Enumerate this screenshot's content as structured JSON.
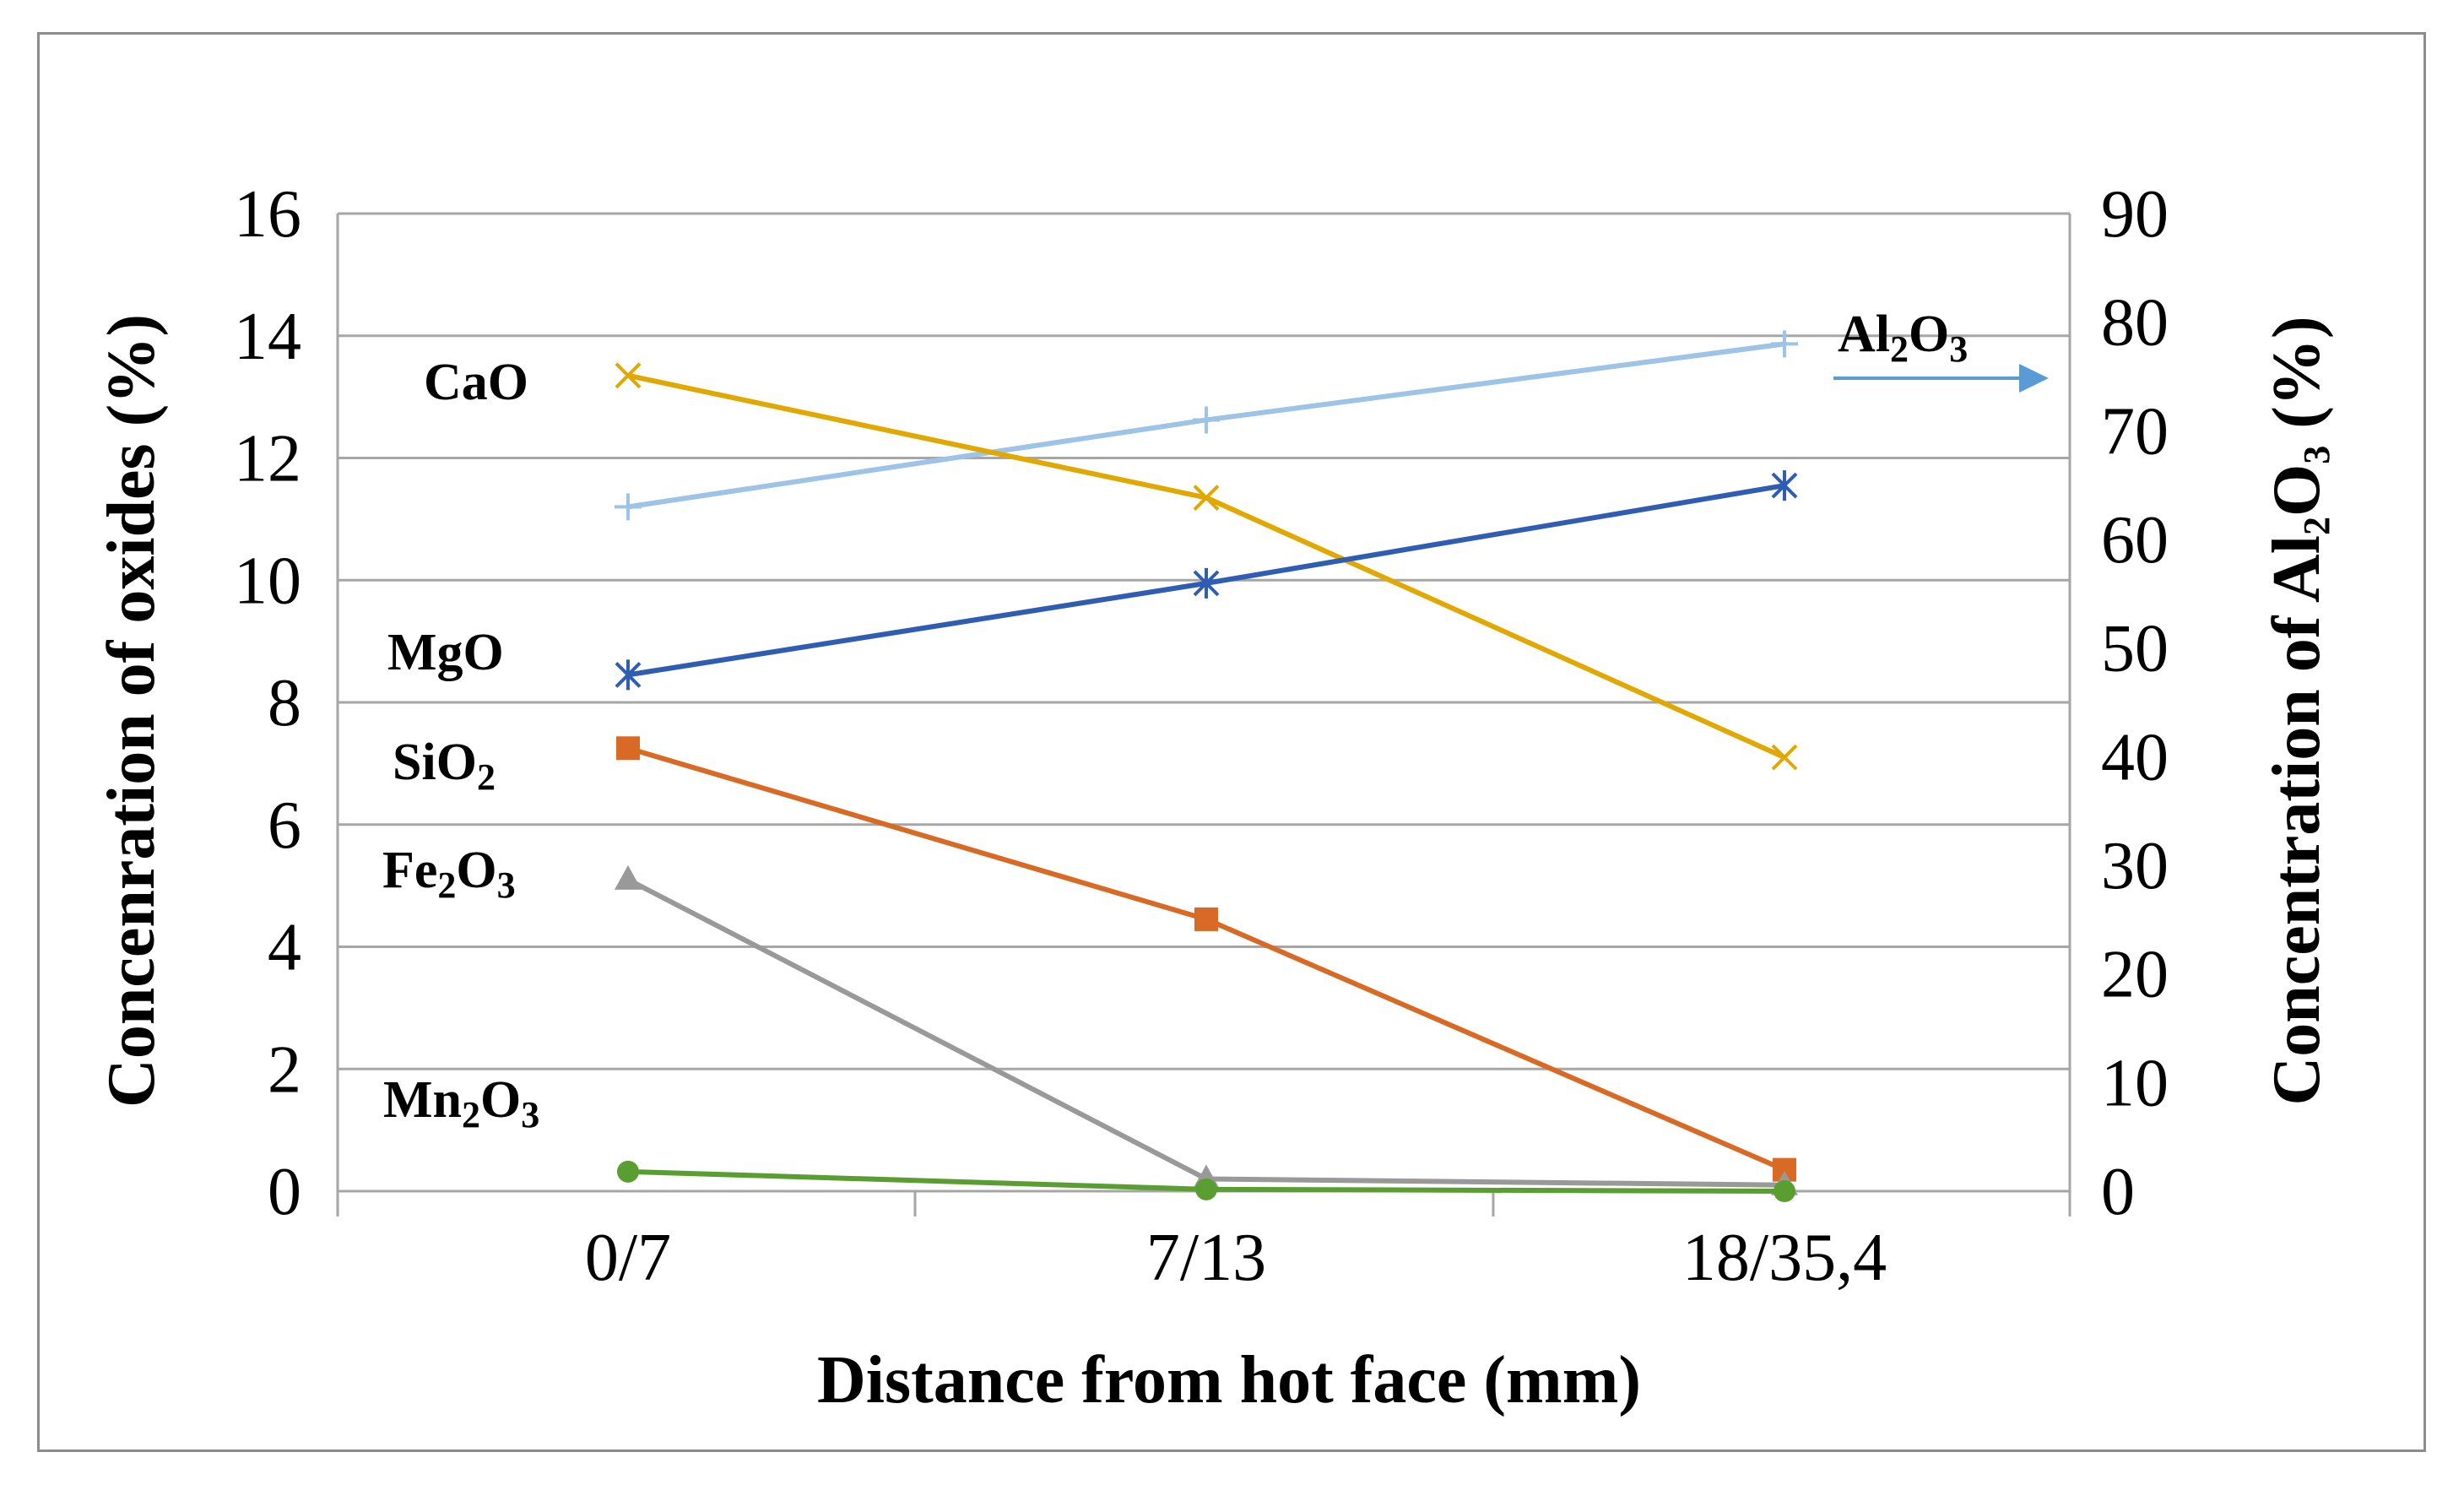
{
  "chart_data": {
    "type": "line",
    "categories": [
      "0/7",
      "7/13",
      "18/35,4"
    ],
    "xlabel": "Distance from hot face (mm)",
    "ylabel": {
      "segments": [
        {
          "text": "Concenration of oxides (%)"
        }
      ]
    },
    "y2label": {
      "segments": [
        {
          "text": "Concentration of  Al"
        },
        {
          "text": "2",
          "sub": true
        },
        {
          "text": "O"
        },
        {
          "text": "3",
          "sub": true
        },
        {
          "text": " (%)"
        }
      ]
    },
    "ylim": [
      0,
      16
    ],
    "yticks": [
      0,
      2,
      4,
      6,
      8,
      10,
      12,
      14,
      16
    ],
    "y2lim": [
      0,
      90
    ],
    "y2ticks": [
      0,
      10,
      20,
      30,
      40,
      50,
      60,
      70,
      80,
      90
    ],
    "grid": true,
    "series": [
      {
        "name": "Al2O3",
        "label_segments": [
          {
            "text": "Al"
          },
          {
            "text": "2",
            "sub": true
          },
          {
            "text": "O"
          },
          {
            "text": "3",
            "sub": true
          }
        ],
        "axis": "right",
        "values": [
          63,
          71,
          78
        ],
        "color": "#9DC3E6",
        "marker": "plus",
        "label_arrow": true
      },
      {
        "name": "CaO",
        "label_segments": [
          {
            "text": "CaO"
          }
        ],
        "axis": "left",
        "values": [
          13.35,
          11.35,
          7.1
        ],
        "color": "#E0A800",
        "marker": "x"
      },
      {
        "name": "MgO",
        "label_segments": [
          {
            "text": "MgO"
          }
        ],
        "axis": "left",
        "values": [
          8.45,
          9.95,
          11.55
        ],
        "color": "#2F5DB3",
        "marker": "star"
      },
      {
        "name": "SiO2",
        "label_segments": [
          {
            "text": "SiO"
          },
          {
            "text": "2",
            "sub": true
          }
        ],
        "axis": "left",
        "values": [
          7.25,
          4.45,
          0.35
        ],
        "color": "#D96A25",
        "marker": "square"
      },
      {
        "name": "Fe2O3",
        "label_segments": [
          {
            "text": "Fe"
          },
          {
            "text": "2",
            "sub": true
          },
          {
            "text": "O"
          },
          {
            "text": "3",
            "sub": true
          }
        ],
        "axis": "left",
        "values": [
          5.1,
          0.2,
          0.1
        ],
        "color": "#999999",
        "marker": "triangle"
      },
      {
        "name": "Mn2O3",
        "label_segments": [
          {
            "text": "Mn"
          },
          {
            "text": "2",
            "sub": true
          },
          {
            "text": "O"
          },
          {
            "text": "3",
            "sub": true
          }
        ],
        "axis": "left",
        "values": [
          0.32,
          0.03,
          0.0
        ],
        "color": "#5A9E32",
        "marker": "circle"
      }
    ]
  }
}
